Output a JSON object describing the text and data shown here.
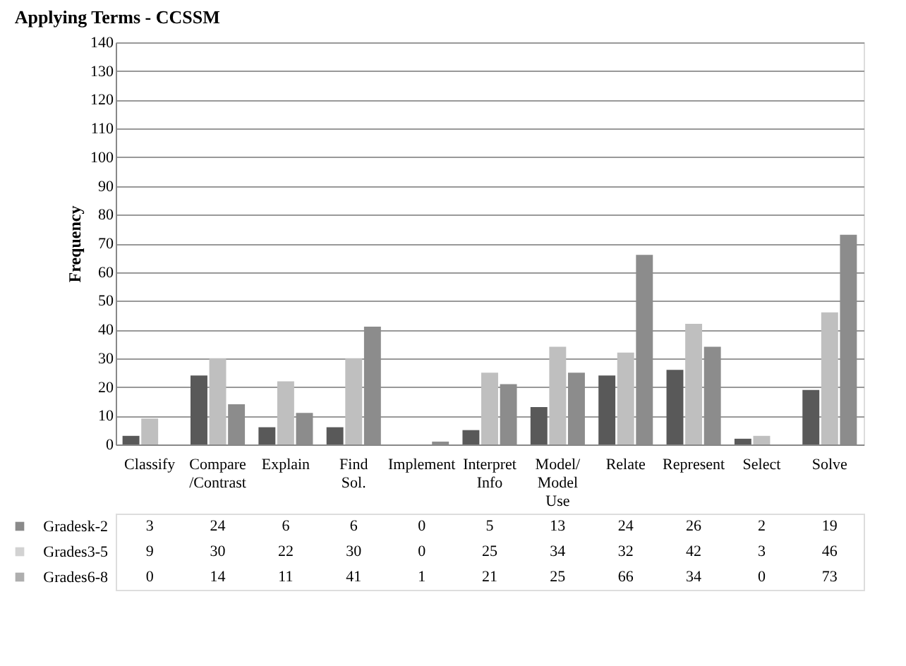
{
  "chart_data": {
    "type": "bar",
    "title": "Applying Terms - CCSSM",
    "ylabel": "Frequency",
    "categories": [
      "Classify",
      "Compare /Contrast",
      "Explain",
      "Find Sol.",
      "Implement",
      "Interpret Info",
      "Model/ Model Use",
      "Relate",
      "Represent",
      "Select",
      "Solve"
    ],
    "series": [
      {
        "name": "Gradesk-2",
        "color": "#595959",
        "values": [
          3,
          24,
          6,
          6,
          0,
          5,
          13,
          24,
          26,
          2,
          19
        ]
      },
      {
        "name": "Grades3-5",
        "color": "#bfbfbf",
        "values": [
          9,
          30,
          22,
          30,
          0,
          25,
          34,
          32,
          42,
          3,
          46
        ]
      },
      {
        "name": "Grades6-8",
        "color": "#8c8c8c",
        "values": [
          0,
          14,
          11,
          41,
          1,
          21,
          25,
          66,
          34,
          0,
          73
        ]
      }
    ],
    "ylim": [
      0,
      140
    ],
    "yticks": [
      0,
      10,
      20,
      30,
      40,
      50,
      60,
      70,
      80,
      90,
      100,
      110,
      120,
      130,
      140
    ],
    "grid": "y",
    "legend": "bottom left",
    "data_labels": true
  }
}
